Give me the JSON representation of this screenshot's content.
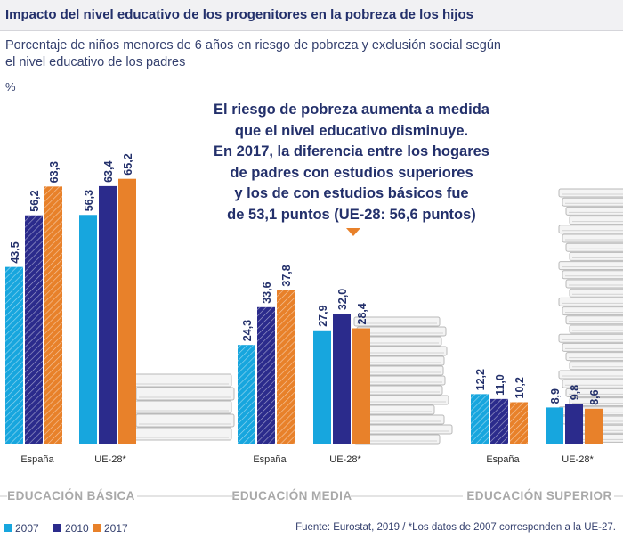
{
  "header": {
    "title": "Impacto del nivel educativo de los progenitores en la pobreza de los hijos",
    "subtitle": "Porcentaje de niños menores de 6 años en riesgo de pobreza y exclusión social según el nivel educativo de los padres",
    "unit": "%"
  },
  "callout": {
    "lines": [
      "El riesgo de pobreza aumenta a medida",
      "que el nivel educativo disminuye.",
      "En 2017, la diferencia entre los hogares",
      "de padres con estudios superiores",
      "y los de con estudios básicos fue",
      "de 53,1 puntos (UE-28: 56,6 puntos)"
    ]
  },
  "source": "Fuente: Eurostat, 2019 / *Los datos de 2007 corresponden a la UE-27.",
  "colors": {
    "2007": "#17a6de",
    "2010": "#2b2b8c",
    "2017": "#e8812a"
  },
  "chart_data": {
    "type": "bar",
    "ylim": [
      0,
      70
    ],
    "grid": false,
    "legend_position": "bottom-left",
    "series": [
      {
        "name": "2007",
        "color": "#17a6de"
      },
      {
        "name": "2010",
        "color": "#2b2b8c"
      },
      {
        "name": "2017",
        "color": "#e8812a"
      }
    ],
    "groups": [
      {
        "label": "EDUCACIÓN BÁSICA",
        "categories": [
          {
            "label": "España",
            "values": [
              43.5,
              56.2,
              63.3
            ],
            "display": [
              "43,5",
              "56,2",
              "63,3"
            ]
          },
          {
            "label": "UE-28*",
            "values": [
              56.3,
              63.4,
              65.2
            ],
            "display": [
              "56,3",
              "63,4",
              "65,2"
            ]
          }
        ]
      },
      {
        "label": "EDUCACIÓN MEDIA",
        "categories": [
          {
            "label": "España",
            "values": [
              24.3,
              33.6,
              37.8
            ],
            "display": [
              "24,3",
              "33,6",
              "37,8"
            ]
          },
          {
            "label": "UE-28*",
            "values": [
              27.9,
              32.0,
              28.4
            ],
            "display": [
              "27,9",
              "32,0",
              "28,4"
            ]
          }
        ]
      },
      {
        "label": "EDUCACIÓN SUPERIOR",
        "categories": [
          {
            "label": "España",
            "values": [
              12.2,
              11.0,
              10.2
            ],
            "display": [
              "12,2",
              "11,0",
              "10,2"
            ]
          },
          {
            "label": "UE-28*",
            "values": [
              8.9,
              9.8,
              8.6
            ],
            "display": [
              "8,9",
              "9,8",
              "8,6"
            ]
          }
        ]
      }
    ]
  }
}
